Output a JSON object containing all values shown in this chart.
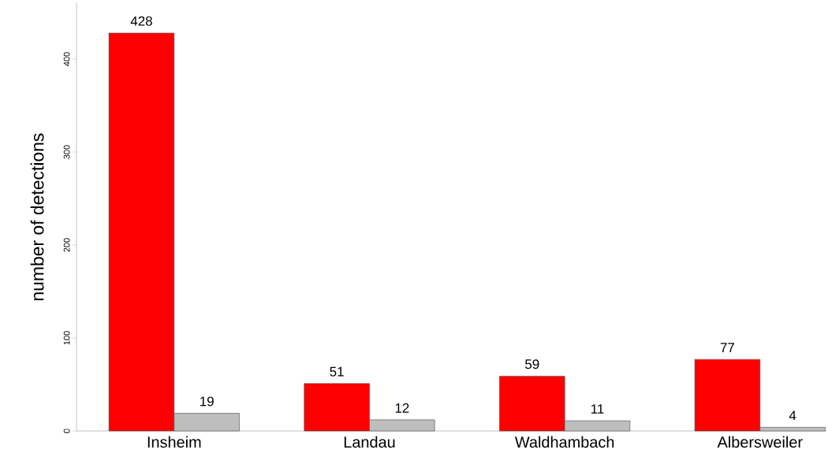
{
  "chart_data": {
    "type": "bar",
    "ylabel": "number of detections",
    "categories": [
      "Insheim",
      "Landau",
      "Waldhambach",
      "Albersweiler"
    ],
    "series": [
      {
        "color": "#ff0000",
        "values": [
          428,
          51,
          59,
          77
        ]
      },
      {
        "color": "#bebebe",
        "values": [
          19,
          12,
          11,
          4
        ]
      }
    ],
    "ylim": [
      0,
      460
    ],
    "yticks": [
      0,
      100,
      200,
      300,
      400
    ],
    "data_labels": true,
    "grid": false
  }
}
